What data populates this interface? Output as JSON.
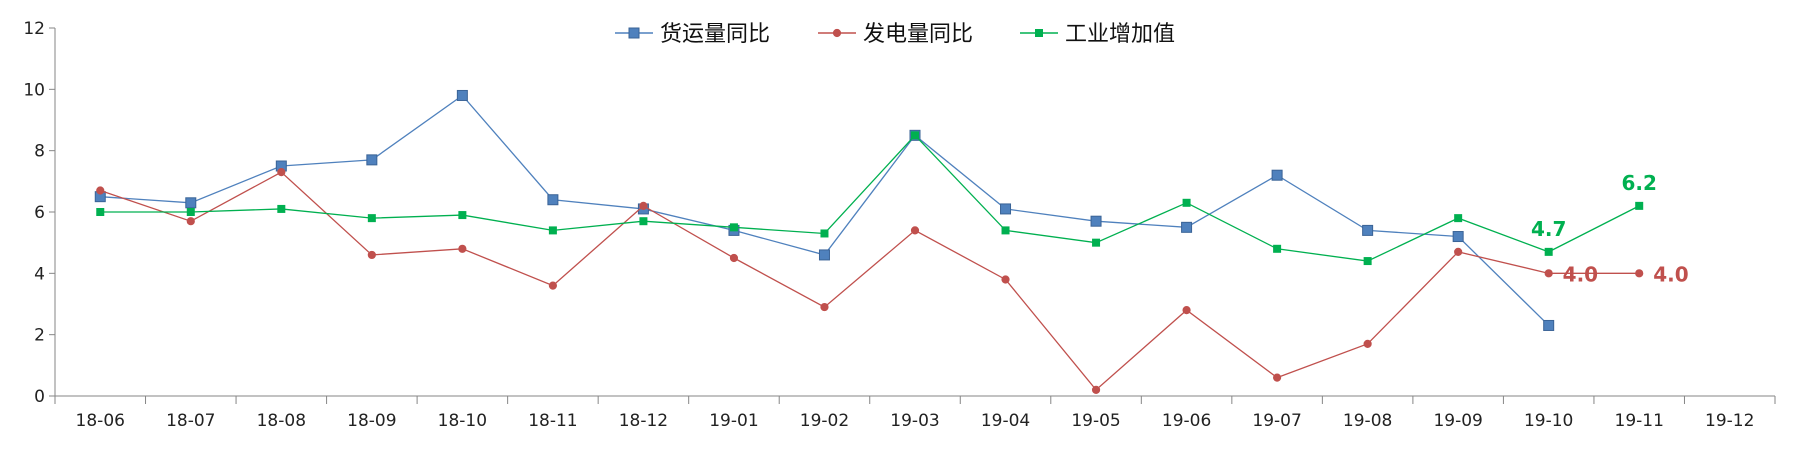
{
  "chart_data": {
    "type": "line",
    "categories": [
      "18-06",
      "18-07",
      "18-08",
      "18-09",
      "18-10",
      "18-11",
      "18-12",
      "19-01",
      "19-02",
      "19-03",
      "19-04",
      "19-05",
      "19-06",
      "19-07",
      "19-08",
      "19-09",
      "19-10",
      "19-11",
      "19-12"
    ],
    "ylim": [
      0,
      12
    ],
    "yticks": [
      0,
      2,
      4,
      6,
      8,
      10,
      12
    ],
    "grid": false,
    "legend_position": "top-center",
    "series": [
      {
        "name": "货运量同比",
        "color": "#4F81BD",
        "marker": "square",
        "values": [
          6.5,
          6.3,
          7.5,
          7.7,
          9.8,
          6.4,
          6.1,
          5.4,
          4.6,
          8.5,
          6.1,
          5.7,
          5.5,
          7.2,
          5.4,
          5.2,
          2.3,
          null,
          null
        ]
      },
      {
        "name": "发电量同比",
        "color": "#C0504D",
        "marker": "circle",
        "values": [
          6.7,
          5.7,
          7.3,
          4.6,
          4.8,
          3.6,
          6.2,
          4.5,
          2.9,
          5.4,
          3.8,
          0.2,
          2.8,
          0.6,
          1.7,
          4.7,
          4.0,
          4.0,
          null
        ]
      },
      {
        "name": "工业增加值",
        "color": "#00B050",
        "marker": "square-small",
        "values": [
          6.0,
          6.0,
          6.1,
          5.8,
          5.9,
          5.4,
          5.7,
          5.5,
          5.3,
          8.5,
          5.4,
          5.0,
          6.3,
          4.8,
          4.4,
          5.8,
          4.7,
          6.2,
          null
        ]
      }
    ],
    "data_labels": [
      {
        "series": 1,
        "index": 16,
        "text": "4.0"
      },
      {
        "series": 1,
        "index": 17,
        "text": "4.0"
      },
      {
        "series": 2,
        "index": 16,
        "text": "4.7"
      },
      {
        "series": 2,
        "index": 17,
        "text": "6.2"
      }
    ]
  }
}
